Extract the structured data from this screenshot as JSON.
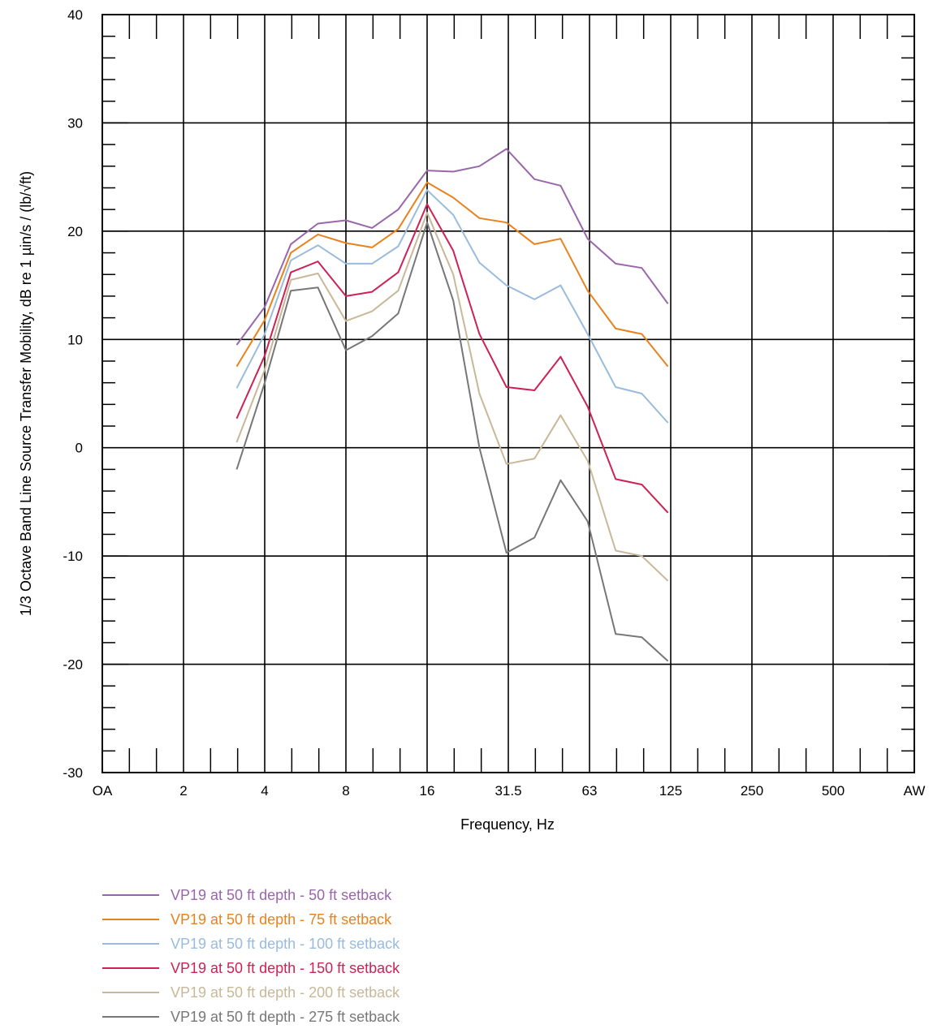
{
  "chart_data": {
    "type": "line",
    "ylabel": "1/3 Octave Band Line Source Transfer Mobility, dB re 1 µin/s / (lb/√ft)",
    "xlabel": "Frequency, Hz",
    "ylim": [
      -30,
      40
    ],
    "yticks": [
      -30,
      -20,
      -10,
      0,
      10,
      20,
      30,
      40
    ],
    "xticks": [
      "OA",
      "2",
      "4",
      "8",
      "16",
      "31.5",
      "63",
      "125",
      "250",
      "500",
      "AW"
    ],
    "grid": true,
    "legend_position": "bottom",
    "x": [
      3.15,
      4,
      5,
      6.3,
      8,
      10,
      12.5,
      16,
      20,
      25,
      31.5,
      40,
      50,
      63,
      80,
      100,
      125
    ],
    "series": [
      {
        "name": "VP19 at 50 ft depth - 50 ft setback",
        "color": "#9966aa",
        "values": [
          9.5,
          13,
          18.8,
          20.7,
          21,
          20.3,
          22,
          25.6,
          25.5,
          26,
          27.6,
          24.8,
          24.2,
          19.3,
          17,
          16.6,
          13.3
        ]
      },
      {
        "name": "VP19 at 50 ft depth - 75 ft setback",
        "color": "#e8821e",
        "values": [
          7.5,
          11.8,
          18,
          19.7,
          18.9,
          18.5,
          20.2,
          24.5,
          23.1,
          21.2,
          20.8,
          18.8,
          19.3,
          14.5,
          11,
          10.5,
          7.5
        ]
      },
      {
        "name": "VP19 at 50 ft depth - 100 ft setback",
        "color": "#99bbdd",
        "values": [
          5.5,
          10.5,
          17.3,
          18.7,
          17,
          17,
          18.6,
          23.8,
          21.5,
          17.1,
          15,
          13.7,
          15,
          10.5,
          5.6,
          5,
          2.3
        ]
      },
      {
        "name": "VP19 at 50 ft depth - 150 ft setback",
        "color": "#cc2255",
        "values": [
          2.7,
          8.5,
          16.2,
          17.2,
          14,
          14.4,
          16.2,
          22.5,
          18.2,
          10.5,
          5.6,
          5.3,
          8.4,
          3.8,
          -2.9,
          -3.4,
          -6
        ]
      },
      {
        "name": "VP19 at 50 ft depth - 200 ft setback",
        "color": "#c8b898",
        "values": [
          0.5,
          7.2,
          15.5,
          16.1,
          11.7,
          12.6,
          14.5,
          21.7,
          16,
          5,
          -1.5,
          -1,
          3,
          -1.2,
          -9.5,
          -10,
          -12.3
        ]
      },
      {
        "name": "VP19 at 50 ft depth - 275 ft setback",
        "color": "#777777",
        "values": [
          -2,
          6,
          14.5,
          14.8,
          9,
          10.3,
          12.4,
          20.8,
          13.6,
          0,
          -9.7,
          -8.3,
          -3,
          -6.8,
          -17.2,
          -17.5,
          -19.7
        ]
      }
    ]
  }
}
